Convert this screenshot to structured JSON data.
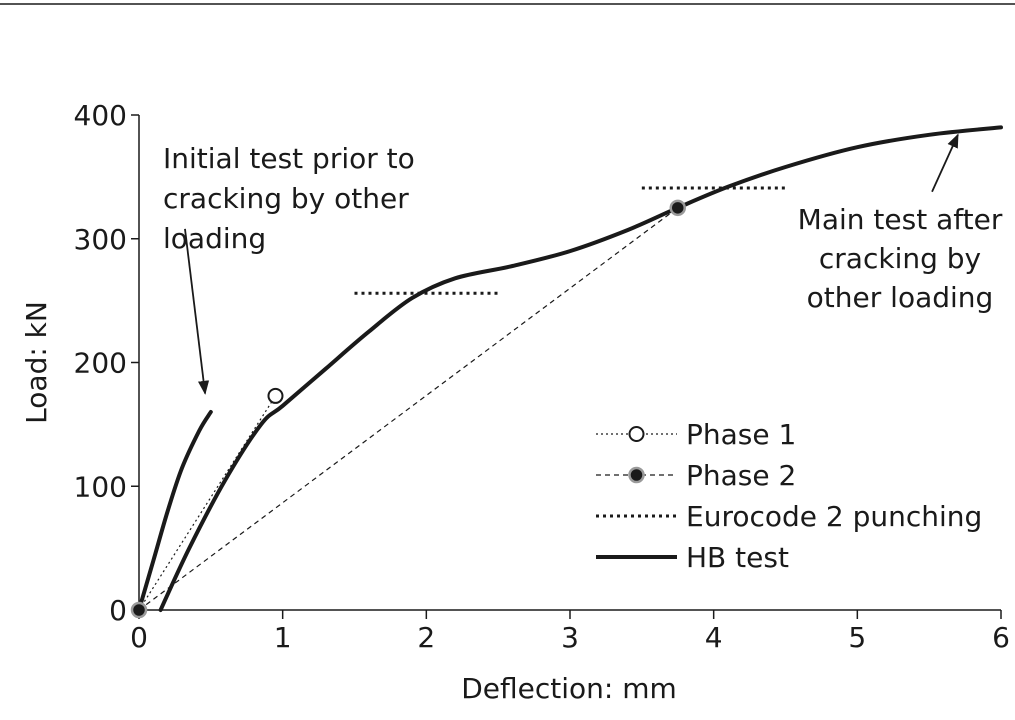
{
  "chart_data": {
    "type": "line",
    "xlabel": "Deflection: mm",
    "ylabel": "Load: kN",
    "xlim": [
      0,
      6
    ],
    "ylim": [
      0,
      400
    ],
    "xticks": [
      "0",
      "1",
      "2",
      "3",
      "4",
      "5",
      "6"
    ],
    "yticks": [
      "0",
      "100",
      "200",
      "300",
      "400"
    ],
    "grid": false,
    "legend_position": "lower-right",
    "legend": [
      "Phase 1",
      "Phase 2",
      "Eurocode 2 punching",
      "HB test"
    ],
    "series": [
      {
        "name": "HB test",
        "style": "solid",
        "segments": [
          [
            [
              0,
              0
            ],
            [
              0.1,
              40
            ],
            [
              0.2,
              80
            ],
            [
              0.3,
              115
            ],
            [
              0.42,
              145
            ],
            [
              0.5,
              160
            ]
          ],
          [
            [
              0.15,
              0
            ],
            [
              0.35,
              50
            ],
            [
              0.6,
              105
            ],
            [
              0.85,
              150
            ],
            [
              1.0,
              165
            ],
            [
              1.3,
              195
            ],
            [
              1.6,
              225
            ],
            [
              1.9,
              252
            ],
            [
              2.2,
              268
            ],
            [
              2.6,
              278
            ],
            [
              3.0,
              290
            ],
            [
              3.4,
              307
            ],
            [
              3.75,
              325
            ],
            [
              4.1,
              342
            ],
            [
              4.5,
              358
            ],
            [
              5.0,
              374
            ],
            [
              5.5,
              384
            ],
            [
              6.0,
              390
            ]
          ]
        ]
      },
      {
        "name": "Phase 1",
        "style": "dotted",
        "marker": "open-circle",
        "points": [
          [
            0,
            0
          ],
          [
            0.95,
            173
          ]
        ]
      },
      {
        "name": "Phase 2",
        "style": "dashed",
        "marker": "filled-circle",
        "points": [
          [
            0,
            0
          ],
          [
            3.75,
            325
          ]
        ]
      },
      {
        "name": "Eurocode 2 punching",
        "style": "dotted-heavy",
        "segments": [
          [
            [
              1.5,
              256
            ],
            [
              2.5,
              256
            ]
          ],
          [
            [
              3.5,
              341
            ],
            [
              4.5,
              341
            ]
          ]
        ]
      }
    ],
    "annotations": [
      {
        "text_lines": [
          "Initial test prior to",
          "cracking by other",
          "loading"
        ],
        "arrow_from": [
          0.32,
          308
        ],
        "arrow_to": [
          0.46,
          175
        ]
      },
      {
        "text_lines": [
          "Main test after",
          "cracking by",
          "other loading"
        ],
        "arrow_from": [
          5.52,
          338
        ],
        "arrow_to": [
          5.7,
          384
        ]
      }
    ],
    "colors": {
      "line": "#1a1a1a",
      "marker_phase2": "#1a1a1a"
    }
  }
}
